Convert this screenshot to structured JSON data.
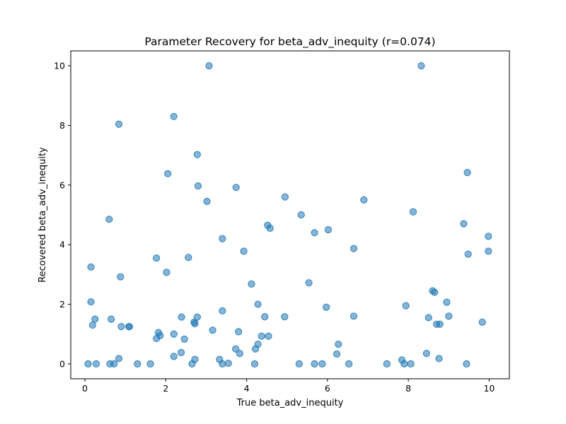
{
  "chart_data": {
    "type": "scatter",
    "title": "Parameter Recovery for beta_adv_inequity (r=0.074)",
    "xlabel": "True beta_adv_inequity",
    "ylabel": "Recovered beta_adv_inequity",
    "xlim": [
      -0.35,
      10.5
    ],
    "ylim": [
      -0.5,
      10.5
    ],
    "xticks": [
      0,
      2,
      4,
      6,
      8,
      10
    ],
    "yticks": [
      0,
      2,
      4,
      6,
      8,
      10
    ],
    "grid": false,
    "marker_color": "#1f77b4",
    "marker_alpha": 0.55,
    "points": [
      [
        0.08,
        0.0
      ],
      [
        0.28,
        0.0
      ],
      [
        0.62,
        0.0
      ],
      [
        0.72,
        0.0
      ],
      [
        1.3,
        0.0
      ],
      [
        1.62,
        0.0
      ],
      [
        2.65,
        0.0
      ],
      [
        3.4,
        0.0
      ],
      [
        3.55,
        0.02
      ],
      [
        4.2,
        0.0
      ],
      [
        5.3,
        0.0
      ],
      [
        5.68,
        0.0
      ],
      [
        5.87,
        0.0
      ],
      [
        6.53,
        0.0
      ],
      [
        7.47,
        0.0
      ],
      [
        7.9,
        0.0
      ],
      [
        8.06,
        0.0
      ],
      [
        9.44,
        0.0
      ],
      [
        0.84,
        0.18
      ],
      [
        2.2,
        0.25
      ],
      [
        2.38,
        0.38
      ],
      [
        2.72,
        0.15
      ],
      [
        3.33,
        0.15
      ],
      [
        3.73,
        0.5
      ],
      [
        3.83,
        0.35
      ],
      [
        4.22,
        0.5
      ],
      [
        4.28,
        0.66
      ],
      [
        6.23,
        0.33
      ],
      [
        6.27,
        0.66
      ],
      [
        7.84,
        0.13
      ],
      [
        8.45,
        0.35
      ],
      [
        8.76,
        0.18
      ],
      [
        1.09,
        1.25
      ],
      [
        1.1,
        1.25
      ],
      [
        0.9,
        1.25
      ],
      [
        0.19,
        1.3
      ],
      [
        0.25,
        1.5
      ],
      [
        0.65,
        1.5
      ],
      [
        1.77,
        0.85
      ],
      [
        1.82,
        1.05
      ],
      [
        1.86,
        0.95
      ],
      [
        2.2,
        1.0
      ],
      [
        2.39,
        1.57
      ],
      [
        2.46,
        0.83
      ],
      [
        2.7,
        1.4
      ],
      [
        2.72,
        1.35
      ],
      [
        2.78,
        1.57
      ],
      [
        3.16,
        1.13
      ],
      [
        3.4,
        1.78
      ],
      [
        3.8,
        1.08
      ],
      [
        4.37,
        0.93
      ],
      [
        4.45,
        1.58
      ],
      [
        4.54,
        0.93
      ],
      [
        4.94,
        1.58
      ],
      [
        4.28,
        2.0
      ],
      [
        4.12,
        2.68
      ],
      [
        5.54,
        2.72
      ],
      [
        5.97,
        1.9
      ],
      [
        6.65,
        1.6
      ],
      [
        7.94,
        1.95
      ],
      [
        8.5,
        1.55
      ],
      [
        8.6,
        2.45
      ],
      [
        8.65,
        2.4
      ],
      [
        8.7,
        1.33
      ],
      [
        8.78,
        1.33
      ],
      [
        8.95,
        2.07
      ],
      [
        9.0,
        1.6
      ],
      [
        9.83,
        1.4
      ],
      [
        0.15,
        2.08
      ],
      [
        0.15,
        3.25
      ],
      [
        0.88,
        2.92
      ],
      [
        1.77,
        3.55
      ],
      [
        2.02,
        3.07
      ],
      [
        2.56,
        3.57
      ],
      [
        3.4,
        4.2
      ],
      [
        3.93,
        3.78
      ],
      [
        4.52,
        4.65
      ],
      [
        4.58,
        4.55
      ],
      [
        5.68,
        4.4
      ],
      [
        6.02,
        4.5
      ],
      [
        6.65,
        3.87
      ],
      [
        9.37,
        4.7
      ],
      [
        9.48,
        3.68
      ],
      [
        9.98,
        4.28
      ],
      [
        9.98,
        3.78
      ],
      [
        0.6,
        4.85
      ],
      [
        2.05,
        6.38
      ],
      [
        2.8,
        5.97
      ],
      [
        3.02,
        5.45
      ],
      [
        3.74,
        5.92
      ],
      [
        4.95,
        5.6
      ],
      [
        5.35,
        5.0
      ],
      [
        6.9,
        5.5
      ],
      [
        8.12,
        5.1
      ],
      [
        9.46,
        6.42
      ],
      [
        0.84,
        8.04
      ],
      [
        2.2,
        8.3
      ],
      [
        2.78,
        7.02
      ],
      [
        3.07,
        10.0
      ],
      [
        8.32,
        10.0
      ]
    ]
  }
}
